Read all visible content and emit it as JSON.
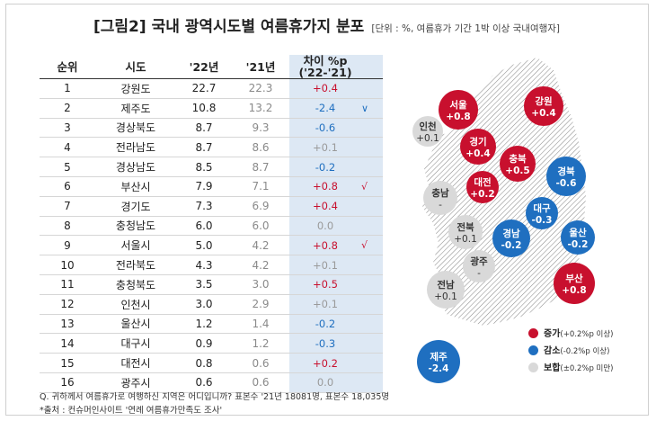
{
  "title": {
    "main": "[그림2] 국내 광역시도별 여름휴가지 분포",
    "sub": "[단위 : %, 여름휴가 기간 1박 이상 국내여행자]"
  },
  "table": {
    "headers": {
      "rank": "순위",
      "region": "시도",
      "y22": "'22년",
      "y21": "'21년",
      "diff": "차이 %p ('22-'21)"
    },
    "rows": [
      {
        "rank": "1",
        "region": "강원도",
        "y22": "22.7",
        "y21": "22.3",
        "diff": "+0.4",
        "dir": "up",
        "mark": ""
      },
      {
        "rank": "2",
        "region": "제주도",
        "y22": "10.8",
        "y21": "13.2",
        "diff": "-2.4",
        "dir": "down",
        "mark": "∨"
      },
      {
        "rank": "3",
        "region": "경상북도",
        "y22": "8.7",
        "y21": "9.3",
        "diff": "-0.6",
        "dir": "down",
        "mark": ""
      },
      {
        "rank": "4",
        "region": "전라남도",
        "y22": "8.7",
        "y21": "8.6",
        "diff": "+0.1",
        "dir": "flat",
        "mark": ""
      },
      {
        "rank": "5",
        "region": "경상남도",
        "y22": "8.5",
        "y21": "8.7",
        "diff": "-0.2",
        "dir": "down",
        "mark": ""
      },
      {
        "rank": "6",
        "region": "부산시",
        "y22": "7.9",
        "y21": "7.1",
        "diff": "+0.8",
        "dir": "up",
        "mark": "√"
      },
      {
        "rank": "7",
        "region": "경기도",
        "y22": "7.3",
        "y21": "6.9",
        "diff": "+0.4",
        "dir": "up",
        "mark": ""
      },
      {
        "rank": "8",
        "region": "충청남도",
        "y22": "6.0",
        "y21": "6.0",
        "diff": "0.0",
        "dir": "flat",
        "mark": ""
      },
      {
        "rank": "9",
        "region": "서울시",
        "y22": "5.0",
        "y21": "4.2",
        "diff": "+0.8",
        "dir": "up",
        "mark": "√"
      },
      {
        "rank": "10",
        "region": "전라북도",
        "y22": "4.3",
        "y21": "4.2",
        "diff": "+0.1",
        "dir": "flat",
        "mark": ""
      },
      {
        "rank": "11",
        "region": "충청북도",
        "y22": "3.5",
        "y21": "3.0",
        "diff": "+0.5",
        "dir": "up",
        "mark": ""
      },
      {
        "rank": "12",
        "region": "인천시",
        "y22": "3.0",
        "y21": "2.9",
        "diff": "+0.1",
        "dir": "flat",
        "mark": ""
      },
      {
        "rank": "13",
        "region": "울산시",
        "y22": "1.2",
        "y21": "1.4",
        "diff": "-0.2",
        "dir": "down",
        "mark": ""
      },
      {
        "rank": "14",
        "region": "대구시",
        "y22": "0.9",
        "y21": "1.2",
        "diff": "-0.3",
        "dir": "down",
        "mark": ""
      },
      {
        "rank": "15",
        "region": "대전시",
        "y22": "0.8",
        "y21": "0.6",
        "diff": "+0.2",
        "dir": "up",
        "mark": ""
      },
      {
        "rank": "16",
        "region": "광주시",
        "y22": "0.6",
        "y21": "0.6",
        "diff": "0.0",
        "dir": "flat",
        "mark": ""
      }
    ]
  },
  "map": {
    "bubbles": [
      {
        "name": "서울",
        "value": "+0.8",
        "status": "up"
      },
      {
        "name": "강원",
        "value": "+0.4",
        "status": "up"
      },
      {
        "name": "인천",
        "value": "+0.1",
        "status": "flat"
      },
      {
        "name": "경기",
        "value": "+0.4",
        "status": "up"
      },
      {
        "name": "충북",
        "value": "+0.5",
        "status": "up"
      },
      {
        "name": "경북",
        "value": "-0.6",
        "status": "down"
      },
      {
        "name": "충남",
        "value": "-",
        "status": "flat"
      },
      {
        "name": "대전",
        "value": "+0.2",
        "status": "up"
      },
      {
        "name": "대구",
        "value": "-0.3",
        "status": "down"
      },
      {
        "name": "전북",
        "value": "+0.1",
        "status": "flat"
      },
      {
        "name": "울산",
        "value": "-0.2",
        "status": "down"
      },
      {
        "name": "경남",
        "value": "-0.2",
        "status": "down"
      },
      {
        "name": "광주",
        "value": "-",
        "status": "flat"
      },
      {
        "name": "전남",
        "value": "+0.1",
        "status": "flat"
      },
      {
        "name": "부산",
        "value": "+0.8",
        "status": "up"
      },
      {
        "name": "제주",
        "value": "-2.4",
        "status": "down"
      }
    ]
  },
  "legend": [
    {
      "label": "증가",
      "note": "(+0.2%p 이상)",
      "status": "up"
    },
    {
      "label": "감소",
      "note": "(-0.2%p 이상)",
      "status": "down"
    },
    {
      "label": "보합",
      "note": "(±0.2%p 미만)",
      "status": "flat"
    }
  ],
  "colors": {
    "up": "#c8102e",
    "down": "#1f6fc0",
    "flat": "#d9d9d9",
    "accent_bg": "#dde8f4"
  },
  "footnotes": {
    "q": "Q. 귀하께서 여름휴가로 여행하신 지역은 어디입니까? 표본수 '21년 18081명, 표본수 18,035명",
    "source": "*출처 : 컨슈머인사이트 '연례 여름휴가만족도 조사'"
  },
  "chart_data": {
    "type": "table",
    "title": "[그림2] 국내 광역시도별 여름휴가지 분포",
    "unit": "%, 여름휴가 기간 1박 이상 국내여행자",
    "columns": [
      "순위",
      "시도",
      "'22년",
      "'21년",
      "차이 %p ('22-'21)"
    ],
    "rows": [
      [
        1,
        "강원도",
        22.7,
        22.3,
        0.4
      ],
      [
        2,
        "제주도",
        10.8,
        13.2,
        -2.4
      ],
      [
        3,
        "경상북도",
        8.7,
        9.3,
        -0.6
      ],
      [
        4,
        "전라남도",
        8.7,
        8.6,
        0.1
      ],
      [
        5,
        "경상남도",
        8.5,
        8.7,
        -0.2
      ],
      [
        6,
        "부산시",
        7.9,
        7.1,
        0.8
      ],
      [
        7,
        "경기도",
        7.3,
        6.9,
        0.4
      ],
      [
        8,
        "충청남도",
        6.0,
        6.0,
        0.0
      ],
      [
        9,
        "서울시",
        5.0,
        4.2,
        0.8
      ],
      [
        10,
        "전라북도",
        4.3,
        4.2,
        0.1
      ],
      [
        11,
        "충청북도",
        3.5,
        3.0,
        0.5
      ],
      [
        12,
        "인천시",
        3.0,
        2.9,
        0.1
      ],
      [
        13,
        "울산시",
        1.2,
        1.4,
        -0.2
      ],
      [
        14,
        "대구시",
        0.9,
        1.2,
        -0.3
      ],
      [
        15,
        "대전시",
        0.8,
        0.6,
        0.2
      ],
      [
        16,
        "광주시",
        0.6,
        0.6,
        0.0
      ]
    ]
  }
}
